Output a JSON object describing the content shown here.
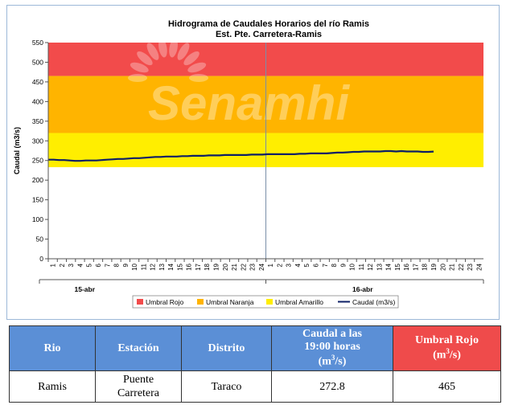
{
  "chart_data": {
    "type": "line",
    "title": "Hidrograma de Caudales Horarios del río Ramis",
    "subtitle": "Est. Pte. Carretera-Ramis",
    "ylabel": "Caudal  (m3/s)",
    "ylim": [
      0,
      550
    ],
    "yticks": [
      0,
      50,
      100,
      150,
      200,
      250,
      300,
      350,
      400,
      450,
      500,
      550
    ],
    "x_hour_ticks": [
      "1",
      "2",
      "3",
      "4",
      "5",
      "6",
      "7",
      "8",
      "9",
      "10",
      "11",
      "12",
      "13",
      "14",
      "15",
      "16",
      "17",
      "18",
      "19",
      "20",
      "21",
      "22",
      "23",
      "24",
      "1",
      "2",
      "3",
      "4",
      "5",
      "6",
      "7",
      "8",
      "9",
      "10",
      "11",
      "12",
      "13",
      "14",
      "15",
      "16",
      "17",
      "18",
      "19",
      "20",
      "21",
      "22",
      "23",
      "24"
    ],
    "day_labels": [
      "15-abr",
      "16-abr"
    ],
    "thresholds": [
      {
        "name": "Umbral Rojo",
        "from": 465,
        "to": 550,
        "color": "#f24b4b"
      },
      {
        "name": "Umbral Naranja",
        "from": 320,
        "to": 465,
        "color": "#ffb400"
      },
      {
        "name": "Umbral Amarillo",
        "from": 233,
        "to": 320,
        "color": "#ffee00"
      }
    ],
    "series": [
      {
        "name": "Caudal (m3/s)",
        "color": "#0d1f66",
        "values": [
          252,
          252,
          251,
          251,
          250,
          249,
          249,
          250,
          250,
          250,
          251,
          252,
          253,
          254,
          254,
          255,
          256,
          256,
          257,
          258,
          259,
          259,
          260,
          260,
          260,
          261,
          261,
          262,
          262,
          262,
          263,
          263,
          263,
          264,
          264,
          264,
          264,
          264,
          265,
          265,
          265,
          266,
          266,
          266,
          266,
          266,
          266,
          267,
          267,
          268,
          268,
          268,
          268,
          269,
          270,
          270,
          271,
          272,
          272,
          273,
          273,
          273,
          273,
          274,
          274,
          273,
          274,
          273,
          273,
          273,
          272,
          272,
          272.8
        ]
      }
    ],
    "watermark": "Senamhi",
    "grid": false,
    "legend": "bottom"
  },
  "table": {
    "headers": {
      "rio": "Rio",
      "estacion": "Estación",
      "distrito": "Distrito",
      "caudal_line1": "Caudal a las",
      "caudal_line2": "19:00 horas",
      "caudal_line3": "(m",
      "caudal_sup": "3",
      "caudal_line3_end": "/s)",
      "umbral_line1": "Umbral Rojo",
      "umbral_line2": "(m",
      "umbral_sup": "3",
      "umbral_line2_end": "/s)"
    },
    "row": {
      "rio": "Ramis",
      "estacion_line1": "Puente",
      "estacion_line2": "Carretera",
      "distrito": "Taraco",
      "caudal": "272.8",
      "umbral": "465"
    }
  }
}
